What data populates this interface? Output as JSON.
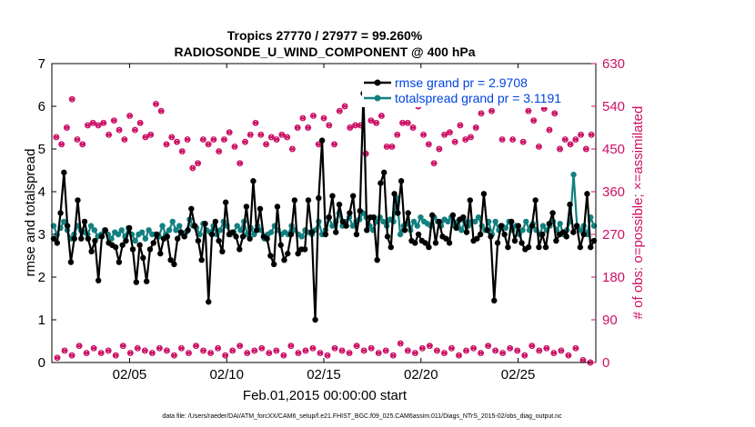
{
  "chart_data": {
    "type": "line",
    "title": "Tropics 27770 / 27977 = 99.260%",
    "subtitle": "RADIOSONDE_U_WIND_COMPONENT @ 400 hPa",
    "xlabel": "Feb.01,2015 00:00:00 start",
    "ylabel_left": "rmse and totalspread",
    "ylabel_right": "# of obs: o=possible; ×=assimilated",
    "footnote": "data file: /Users/raeder/DAI/ATM_forcXX/CAM6_setup/f.e21.FHIST_BGC.f09_025.CAM6assim.011/Diags_NTrS_2015-02/obs_diag_output.nc",
    "x_tick_labels": [
      "02/05",
      "02/10",
      "02/15",
      "02/20",
      "02/25"
    ],
    "x_tick_days": [
      5,
      10,
      15,
      20,
      25
    ],
    "xlim": [
      1,
      29
    ],
    "ylim_left": [
      0,
      7
    ],
    "ylim_right": [
      0,
      630
    ],
    "y_ticks_left": [
      "0",
      "1",
      "2",
      "3",
      "4",
      "5",
      "6",
      "7"
    ],
    "y_ticks_right": [
      "0",
      "90",
      "180",
      "270",
      "360",
      "450",
      "540",
      "630"
    ],
    "colors": {
      "rmse": "#000000",
      "spread": "#128080",
      "obs": "#cc1166",
      "axis_right": "#cc1166",
      "legend_text": "#0044dd"
    },
    "series": [
      {
        "name": "rmse",
        "legend": "rmse grand pr = 2.9708",
        "values": [
          2.9,
          2.8,
          3.5,
          4.45,
          3.2,
          2.35,
          2.9,
          3.8,
          2.9,
          3.3,
          2.9,
          2.6,
          2.85,
          1.92,
          2.95,
          3.1,
          2.8,
          2.75,
          2.7,
          2.35,
          2.75,
          2.85,
          3.15,
          2.65,
          1.88,
          2.75,
          2.45,
          1.9,
          2.65,
          2.8,
          3.0,
          2.55,
          2.9,
          2.95,
          2.4,
          2.3,
          2.9,
          3.05,
          2.95,
          3.1,
          3.6,
          3.2,
          2.85,
          2.4,
          3.25,
          1.42,
          3.0,
          3.3,
          2.85,
          2.6,
          3.75,
          3.0,
          3.05,
          2.95,
          2.65,
          2.95,
          3.65,
          2.9,
          4.25,
          3.1,
          3.6,
          2.95,
          2.9,
          2.5,
          2.3,
          3.65,
          2.75,
          2.4,
          2.55,
          3.0,
          3.8,
          2.55,
          2.65,
          2.65,
          3.8,
          3.05,
          1.0,
          3.85,
          5.2,
          3.0,
          3.4,
          3.9,
          3.05,
          3.7,
          3.3,
          3.2,
          3.5,
          3.9,
          3.0,
          3.55,
          6.3,
          3.1,
          3.4,
          3.4,
          2.4,
          4.2,
          4.45,
          2.95,
          2.7,
          3.95,
          3.5,
          4.25,
          3.1,
          3.5,
          2.85,
          2.8,
          3.0,
          2.85,
          2.8,
          2.7,
          3.45,
          2.8,
          3.3,
          2.95,
          2.9,
          2.8,
          3.45,
          3.15,
          3.35,
          3.4,
          3.05,
          3.8,
          2.85,
          2.9,
          3.0,
          3.95,
          3.1,
          2.95,
          1.45,
          2.8,
          3.2,
          3.0,
          2.7,
          3.3,
          2.85,
          3.2,
          2.8,
          2.65,
          2.7,
          3.2,
          3.8,
          2.7,
          3.0,
          2.7,
          3.25,
          3.5,
          2.85,
          3.0,
          3.05,
          2.95,
          3.7,
          3.05,
          3.2,
          2.7,
          3.0,
          3.95,
          2.7,
          2.85
        ]
      },
      {
        "name": "totalspread",
        "legend": "totalspread grand pr = 3.1191",
        "values": [
          3.2,
          3.0,
          3.15,
          3.3,
          3.1,
          2.9,
          3.0,
          3.2,
          3.1,
          3.05,
          3.0,
          3.2,
          3.1,
          2.95,
          3.0,
          3.1,
          3.0,
          2.9,
          3.05,
          3.0,
          3.1,
          2.95,
          3.15,
          3.0,
          2.85,
          3.0,
          3.05,
          2.9,
          3.1,
          3.0,
          3.0,
          2.95,
          3.2,
          3.0,
          3.1,
          3.3,
          3.1,
          3.2,
          3.0,
          3.05,
          3.35,
          3.2,
          3.15,
          3.0,
          3.25,
          3.1,
          3.05,
          3.2,
          3.0,
          3.1,
          3.3,
          3.2,
          3.0,
          3.05,
          3.2,
          3.1,
          3.3,
          3.0,
          3.15,
          3.0,
          3.2,
          3.1,
          2.9,
          3.0,
          3.05,
          3.2,
          3.1,
          3.0,
          3.05,
          3.0,
          3.2,
          3.1,
          3.0,
          2.95,
          3.1,
          3.05,
          3.0,
          3.1,
          3.3,
          3.0,
          3.1,
          3.4,
          3.2,
          3.3,
          3.5,
          3.2,
          3.3,
          3.4,
          3.2,
          3.3,
          3.35,
          3.5,
          3.4,
          3.2,
          3.1,
          3.3,
          3.4,
          3.3,
          3.2,
          3.35,
          3.3,
          3.85,
          3.0,
          3.2,
          3.25,
          3.1,
          3.3,
          3.2,
          3.4,
          3.3,
          3.25,
          3.2,
          3.4,
          3.3,
          3.2,
          3.35,
          3.3,
          3.4,
          3.2,
          3.3,
          3.1,
          3.3,
          3.2,
          3.3,
          3.3,
          3.4,
          3.2,
          3.1,
          3.3,
          3.0,
          3.3,
          3.1,
          3.2,
          3.15,
          3.3,
          3.1,
          3.2,
          3.0,
          3.1,
          3.3,
          3.1,
          3.25,
          3.1,
          3.0,
          3.2,
          3.1,
          3.2,
          3.3,
          3.1,
          3.25,
          3.0,
          3.1,
          3.3,
          4.4,
          3.2,
          3.1,
          3.2,
          3.0,
          3.4,
          3.2
        ]
      }
    ],
    "obs_possible_top": [
      475,
      460,
      495,
      555,
      470,
      460,
      500,
      505,
      500,
      505,
      480,
      510,
      490,
      470,
      520,
      490,
      505,
      475,
      480,
      545,
      530,
      460,
      475,
      465,
      445,
      470,
      410,
      420,
      470,
      460,
      470,
      445,
      470,
      485,
      455,
      420,
      465,
      480,
      505,
      480,
      460,
      475,
      470,
      480,
      475,
      450,
      495,
      515,
      495,
      520,
      460,
      515,
      500,
      460,
      530,
      540,
      495,
      500,
      500,
      440,
      510,
      505,
      520,
      455,
      455,
      480,
      505,
      505,
      495,
      540,
      480,
      460,
      420,
      450,
      480,
      485,
      465,
      500,
      470,
      475,
      495,
      525,
      545,
      530,
      555,
      470,
      560,
      470,
      545,
      465,
      530,
      510,
      455,
      535,
      490,
      525,
      450,
      470,
      460,
      470,
      480,
      450,
      480
    ],
    "obs_possible_bottom": [
      10,
      25,
      15,
      35,
      20,
      30,
      20,
      25,
      15,
      35,
      20,
      30,
      25,
      20,
      30,
      25,
      15,
      30,
      20,
      35,
      25,
      20,
      30,
      15,
      25,
      35,
      20,
      25,
      30,
      20,
      25,
      15,
      35,
      20,
      25,
      30,
      20,
      15,
      30,
      25,
      20,
      35,
      25,
      30,
      20,
      25,
      15,
      40,
      25,
      20,
      30,
      35,
      25,
      20,
      30,
      15,
      25,
      30,
      20,
      35,
      25,
      20,
      30,
      25,
      15,
      35,
      25,
      30,
      20,
      25,
      15,
      30,
      5,
      0
    ]
  },
  "legend": {
    "rmse_label": "rmse grand pr = 2.9708",
    "spread_label": "totalspread grand pr = 3.1191"
  }
}
